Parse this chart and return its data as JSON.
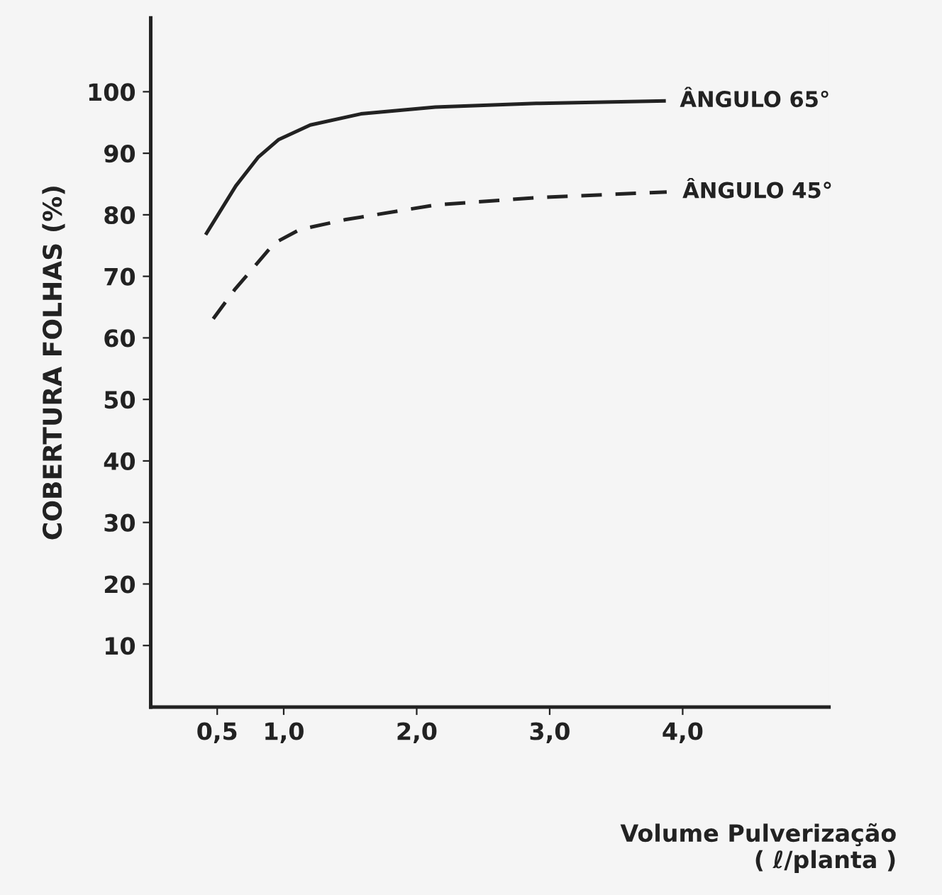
{
  "chart_data": {
    "type": "line",
    "ylabel": "COBERTURA FOLHAS (%)",
    "xlabel": "Volume Pulverização\n( ℓ/planta )",
    "xlim": [
      0,
      5.1
    ],
    "ylim": [
      0,
      112
    ],
    "xticks": [
      {
        "value": 0.5,
        "label": "0,5"
      },
      {
        "value": 1.0,
        "label": "1,0"
      },
      {
        "value": 2.0,
        "label": "2,0"
      },
      {
        "value": 3.0,
        "label": "3,0"
      },
      {
        "value": 4.0,
        "label": "4,0"
      }
    ],
    "yticks": [
      10,
      20,
      30,
      40,
      50,
      60,
      70,
      80,
      90,
      100
    ],
    "grid": false,
    "legend": false,
    "marker": "none",
    "series": [
      {
        "name": "ÂNGULO 65°",
        "color": "#222222",
        "line_style": "solid",
        "x": [
          0.42,
          0.64,
          0.81,
          0.96,
          1.2,
          1.58,
          2.14,
          2.9,
          3.86
        ],
        "values": [
          77.0,
          84.7,
          89.4,
          92.2,
          94.6,
          96.4,
          97.5,
          98.1,
          98.5
        ]
      },
      {
        "name": "ÂNGULO 45°",
        "color": "#222222",
        "line_style": "dashed",
        "x": [
          0.47,
          0.63,
          0.8,
          0.93,
          1.12,
          1.46,
          2.14,
          2.9,
          3.88
        ],
        "values": [
          63.1,
          67.8,
          72.1,
          75.4,
          77.6,
          79.2,
          81.6,
          82.8,
          83.7
        ]
      }
    ]
  }
}
